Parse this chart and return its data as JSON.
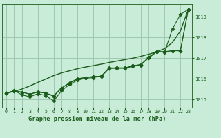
{
  "title": "Graphe pression niveau de la mer (hPa)",
  "xlabel_ticks": [
    0,
    1,
    2,
    3,
    4,
    5,
    6,
    7,
    8,
    9,
    10,
    11,
    12,
    13,
    14,
    15,
    16,
    17,
    18,
    19,
    20,
    21,
    22,
    23
  ],
  "ylim": [
    1014.6,
    1019.6
  ],
  "yticks": [
    1015,
    1016,
    1017,
    1018,
    1019
  ],
  "xlim": [
    -0.5,
    23.5
  ],
  "bg_color": "#c8ecd8",
  "grid_color": "#a0c8b0",
  "line_color": "#1a5c1a",
  "series_smooth": [
    1015.3,
    1015.38,
    1015.5,
    1015.65,
    1015.82,
    1015.98,
    1016.15,
    1016.28,
    1016.38,
    1016.48,
    1016.56,
    1016.63,
    1016.7,
    1016.78,
    1016.85,
    1016.92,
    1016.99,
    1017.08,
    1017.18,
    1017.3,
    1017.45,
    1017.75,
    1018.3,
    1019.35
  ],
  "series_a": [
    1015.3,
    1015.4,
    1015.35,
    1015.25,
    1015.35,
    1015.3,
    1015.15,
    1015.55,
    1015.8,
    1016.0,
    1016.05,
    1016.1,
    1016.1,
    1016.5,
    1016.5,
    1016.5,
    1016.6,
    1016.65,
    1017.05,
    1017.3,
    1017.3,
    1017.35,
    1017.35,
    1019.35
  ],
  "series_b": [
    1015.3,
    1015.4,
    1015.35,
    1015.25,
    1015.38,
    1015.3,
    1015.18,
    1015.55,
    1015.78,
    1015.98,
    1016.05,
    1016.1,
    1016.12,
    1016.5,
    1016.52,
    1016.52,
    1016.62,
    1016.68,
    1017.0,
    1017.3,
    1017.3,
    1017.35,
    1017.35,
    1019.35
  ],
  "series_c": [
    1015.3,
    1015.42,
    1015.22,
    1015.12,
    1015.28,
    1015.18,
    1014.92,
    1015.42,
    1015.72,
    1015.92,
    1016.02,
    1016.05,
    1016.12,
    1016.52,
    1016.52,
    1016.52,
    1016.62,
    1016.68,
    1017.02,
    1017.3,
    1017.28,
    1018.4,
    1019.1,
    1019.35
  ]
}
